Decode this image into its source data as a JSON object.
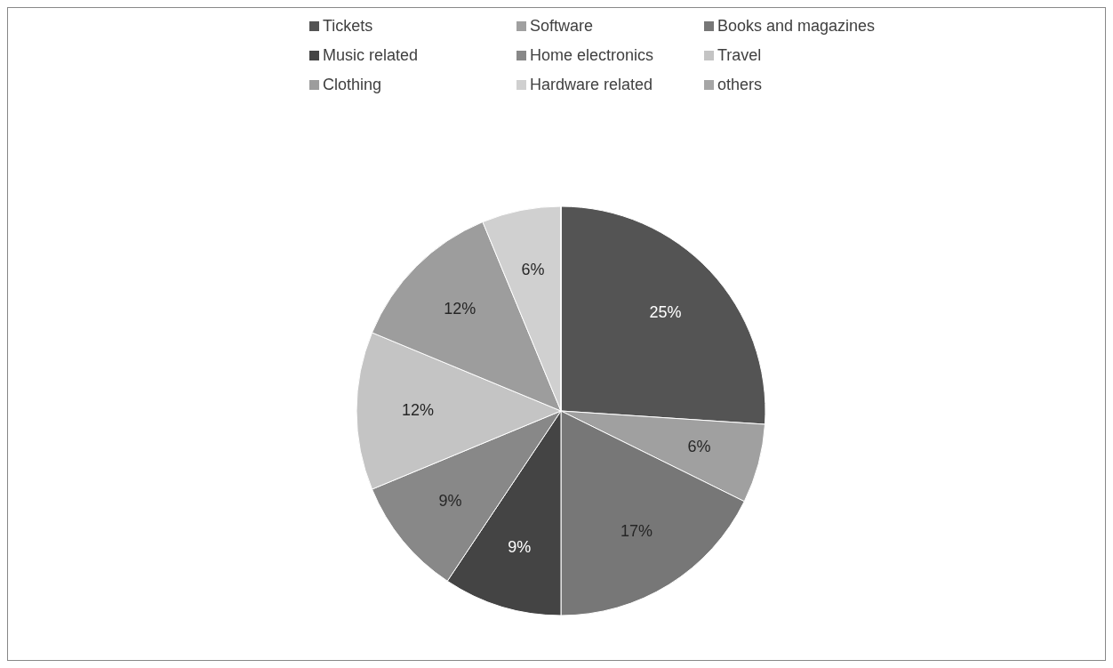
{
  "chart_data": {
    "type": "pie",
    "categories": [
      "Tickets",
      "Software",
      "Books and magazines",
      "Music related",
      "Home electronics",
      "Travel",
      "Clothing",
      "Hardware related",
      "others"
    ],
    "values": [
      25,
      6,
      17,
      9,
      9,
      12,
      12,
      6,
      0
    ],
    "colors": [
      "#545454",
      "#a0a0a0",
      "#777777",
      "#444444",
      "#888888",
      "#c4c4c4",
      "#9d9d9d",
      "#d0d0d0",
      "#a6a6a6"
    ],
    "value_labels": [
      "25%",
      "6%",
      "17%",
      "9%",
      "9%",
      "12%",
      "12%",
      "6%",
      null
    ],
    "legend": "top"
  }
}
